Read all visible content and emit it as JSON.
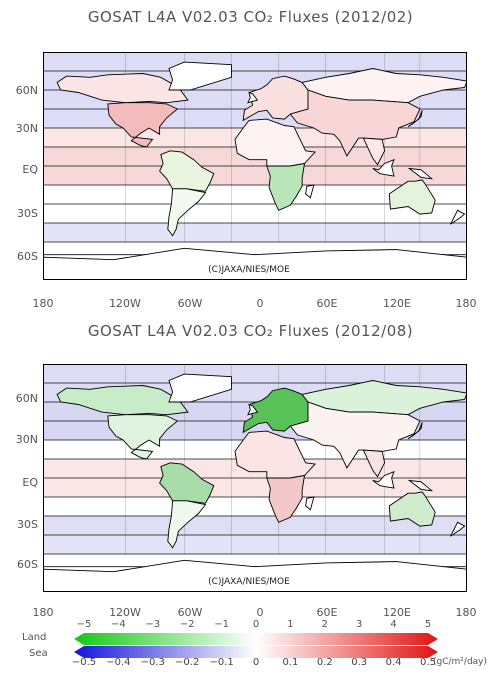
{
  "panels": [
    {
      "title": "GOSAT L4A V02.03 CO₂ Fluxes (2012/02)",
      "copyright": "(C)JAXA/NIES/MOE",
      "ocean": "#e4e4f8",
      "regions": {
        "boreal_na": "#fbe4e4",
        "temperate_na": "#f3bcbc",
        "tropical_sa": "#eaf5e0",
        "temperate_sa": "#f2f9ee",
        "europe": "#fbe0e0",
        "north_africa": "#fdf3f3",
        "south_africa": "#b9e6b9",
        "boreal_asia": "#fff2f2",
        "temperate_asia": "#f8d6d6",
        "tropical_asia": "#fde8e8",
        "australia": "#e3f3dc"
      },
      "bands": [
        "#dcdcf4",
        "#dcdcf6",
        "#fbe6e6",
        "#f7d8d8",
        "#ffffff",
        "#ffffff",
        "#e4e4f8"
      ]
    },
    {
      "title": "GOSAT L4A V02.03 CO₂ Fluxes (2012/08)",
      "copyright": "(C)JAXA/NIES/MOE",
      "ocean": "#e4e4f8",
      "regions": {
        "boreal_na": "#c8ecc8",
        "temperate_na": "#dff3df",
        "tropical_sa": "#a8dca8",
        "temperate_sa": "#eef8ee",
        "europe": "#58c258",
        "north_africa": "#fde4e4",
        "south_africa": "#f4c8c8",
        "boreal_asia": "#d9f2d9",
        "temperate_asia": "#fdf2f2",
        "tropical_asia": "#fbe2e2",
        "australia": "#cfeccf"
      },
      "bands": [
        "#dcdcf4",
        "#d7d7f3",
        "#ffffff",
        "#fbe6e6",
        "#ffffff",
        "#dedef4",
        "#e4e4f8"
      ]
    }
  ],
  "axes": {
    "y_labels": [
      "60N",
      "30N",
      "EQ",
      "30S",
      "60S"
    ],
    "x_labels": [
      "180",
      "120W",
      "60W",
      "0",
      "60E",
      "120E",
      "180"
    ]
  },
  "colorbar": {
    "land_label": "Land",
    "sea_label": "Sea",
    "land_ticks": [
      "−5",
      "−4",
      "−3",
      "−2",
      "−1",
      "0",
      "1",
      "2",
      "3",
      "4",
      "5"
    ],
    "sea_ticks": [
      "−0.5",
      "−0.4",
      "−0.3",
      "−0.2",
      "−0.1",
      "0",
      "0.1",
      "0.2",
      "0.3",
      "0.4",
      "0.5"
    ],
    "unit": "(gC/m²/day)"
  }
}
